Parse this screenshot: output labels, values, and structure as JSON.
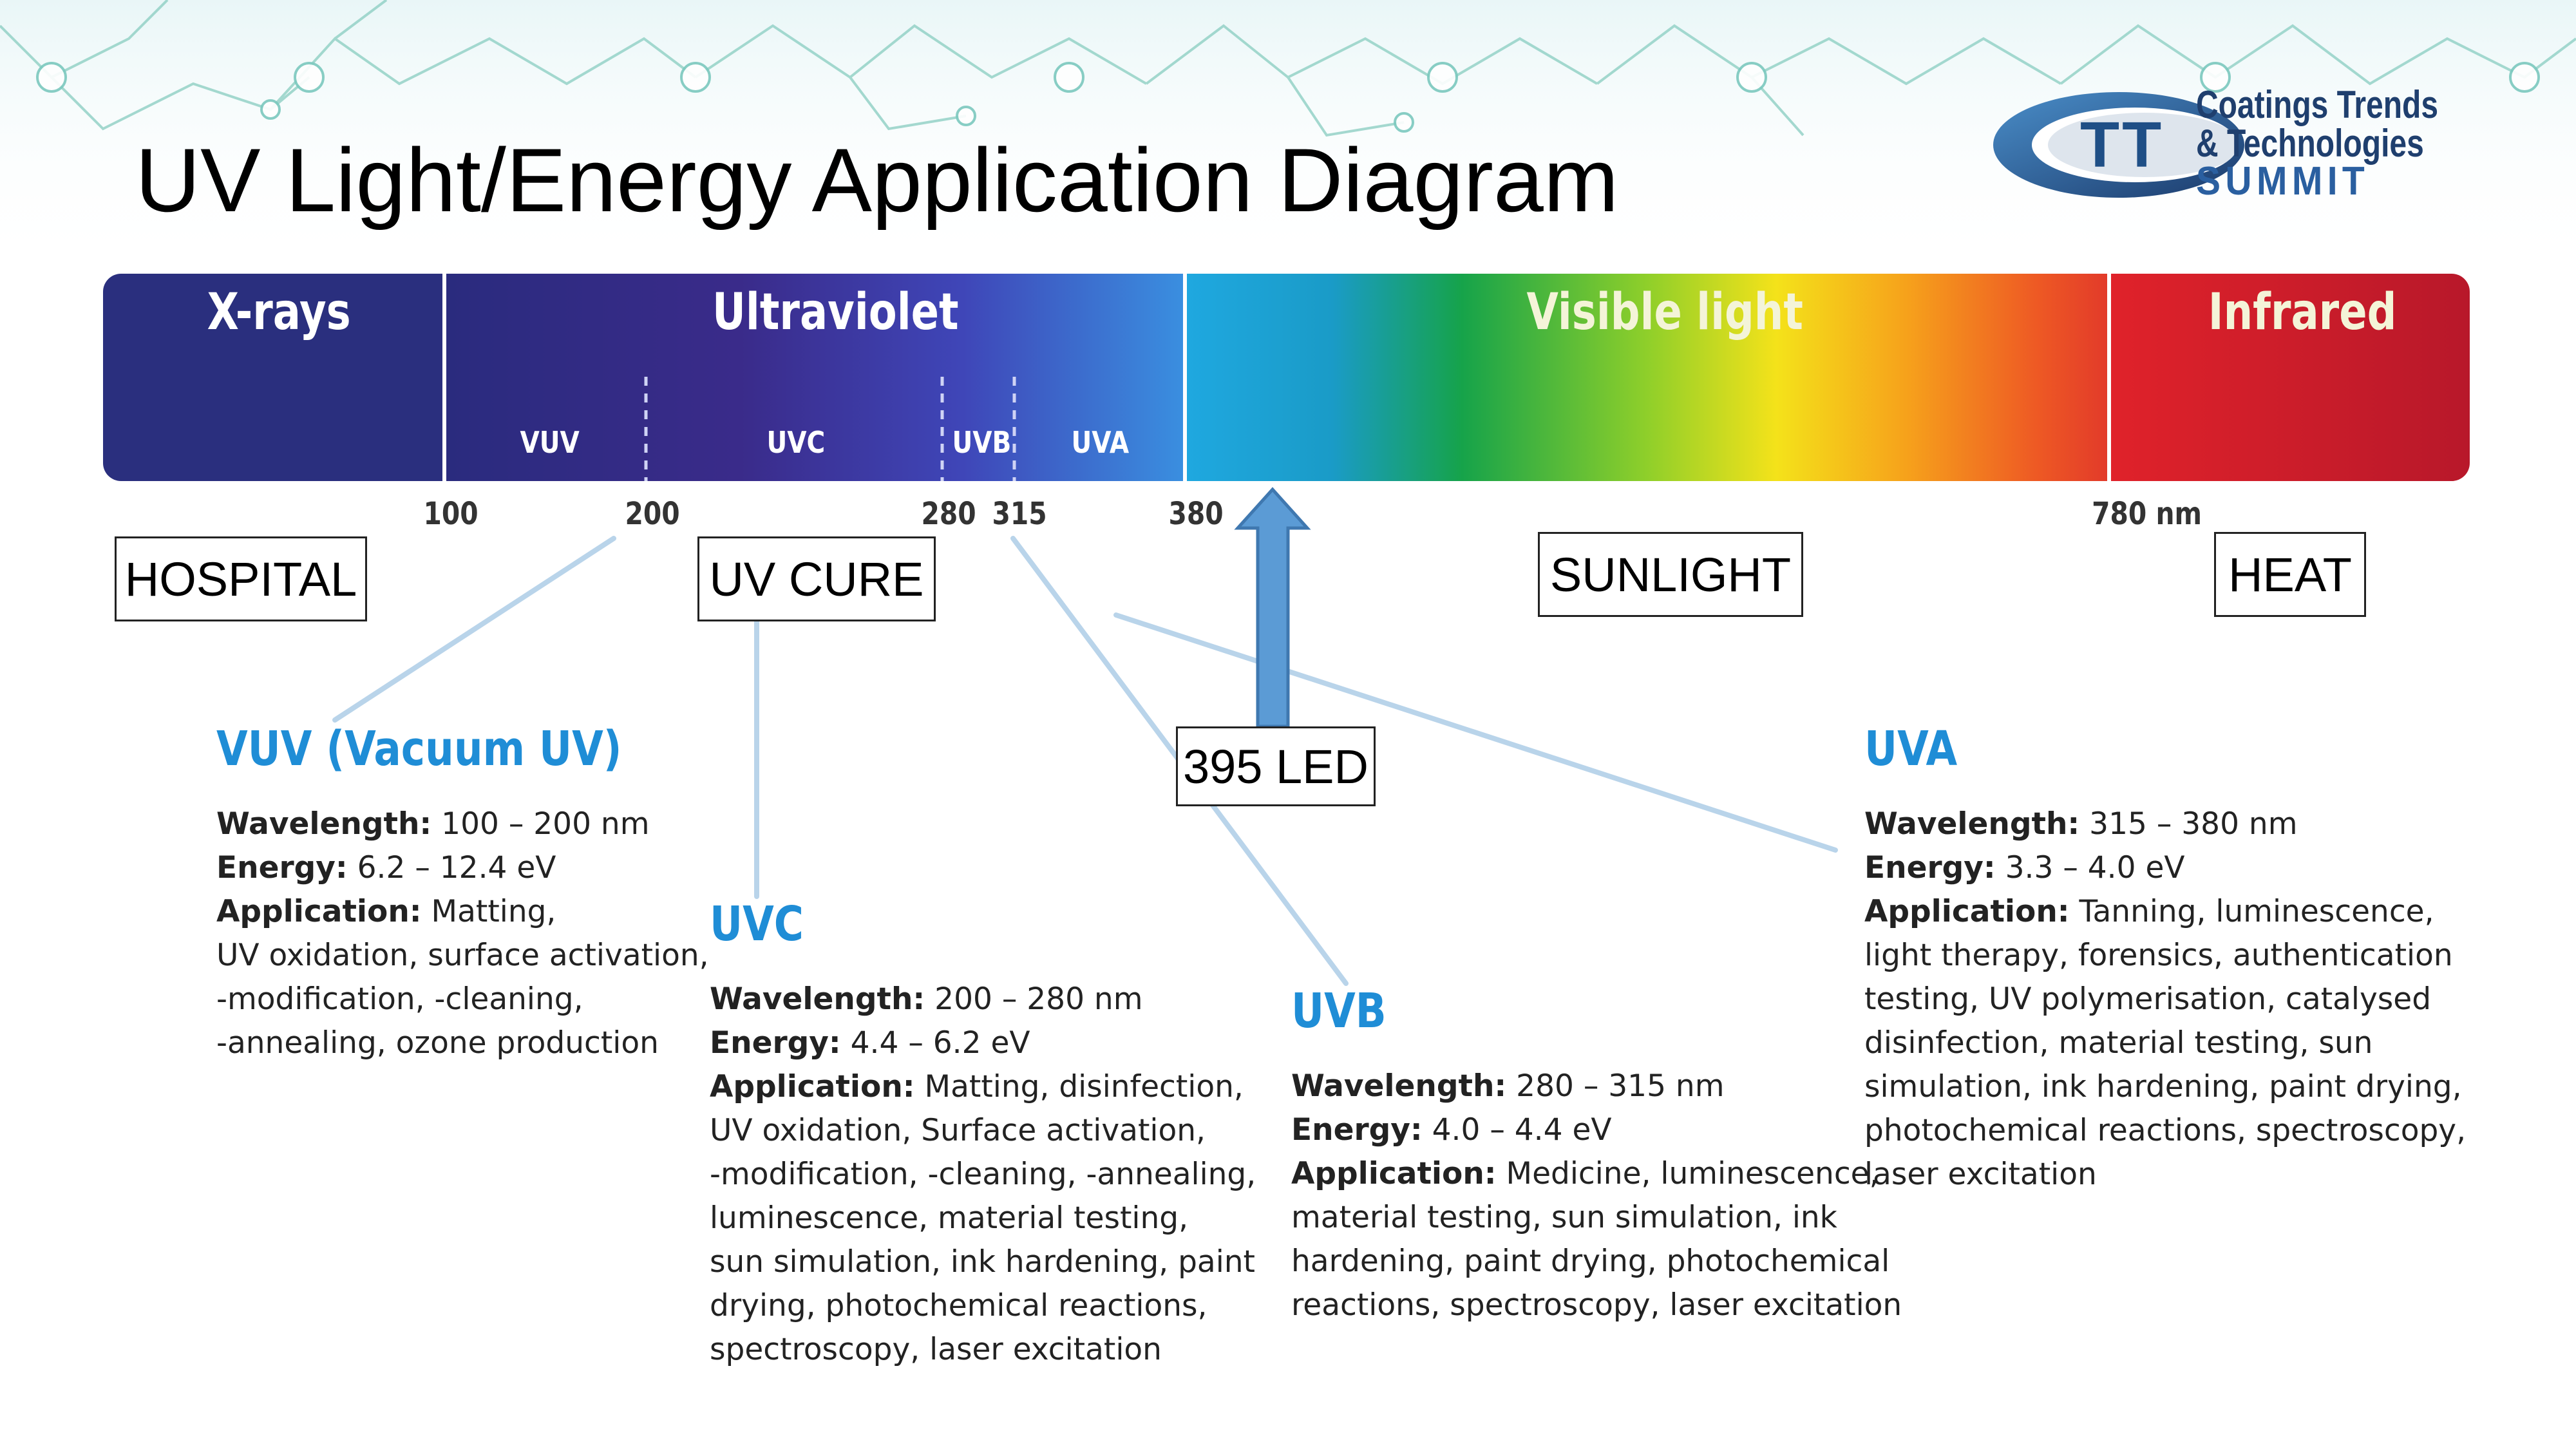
{
  "title": "UV Light/Energy Application Diagram",
  "logo": {
    "line1": "Coatings Trends",
    "line2": "& Technologies",
    "line3": "SUMMIT",
    "monogram": "TT"
  },
  "spectrum": {
    "bands": [
      "X-rays",
      "Ultraviolet",
      "Visible light",
      "Infrared"
    ],
    "sub_bands": [
      "VUV",
      "UVC",
      "UVB",
      "UVA"
    ],
    "ticks": [
      "100",
      "200",
      "280",
      "315",
      "380",
      "780 nm"
    ]
  },
  "tags": {
    "hospital": "HOSPITAL",
    "uv_cure": "UV CURE",
    "sunlight": "SUNLIGHT",
    "heat": "HEAT",
    "led": "395 LED"
  },
  "cards": {
    "vuv": {
      "title": "VUV (Vacuum UV)",
      "wavelength_label": "Wavelength:",
      "wavelength": "100 – 200 nm",
      "energy_label": "Energy:",
      "energy": "6.2 – 12.4 eV",
      "application_label": "Application:",
      "application": [
        "Matting,",
        "UV oxidation, surface activation,",
        "-modification, -cleaning,",
        "-annealing, ozone production"
      ]
    },
    "uvc": {
      "title": "UVC",
      "wavelength_label": "Wavelength:",
      "wavelength": "200 – 280 nm",
      "energy_label": "Energy:",
      "energy": "4.4 – 6.2 eV",
      "application_label": "Application:",
      "application": [
        "Matting, disinfection,",
        "UV oxidation, Surface activation,",
        "-modification, -cleaning, -annealing,",
        "luminescence, material testing,",
        "sun simulation, ink hardening, paint",
        "drying, photochemical reactions,",
        "spectroscopy, laser excitation"
      ]
    },
    "uvb": {
      "title": "UVB",
      "wavelength_label": "Wavelength:",
      "wavelength": "280 – 315 nm",
      "energy_label": "Energy:",
      "energy": "4.0 – 4.4 eV",
      "application_label": "Application:",
      "application": [
        "Medicine, luminescence,",
        "material testing, sun simulation, ink",
        "hardening, paint drying, photochemical",
        "reactions, spectroscopy, laser excitation"
      ]
    },
    "uva": {
      "title": "UVA",
      "wavelength_label": "Wavelength:",
      "wavelength": "315 – 380 nm",
      "energy_label": "Energy:",
      "energy": "3.3 – 4.0 eV",
      "application_label": "Application:",
      "application": [
        "Tanning, luminescence,",
        "light therapy, forensics, authentication",
        "testing, UV polymerisation, catalysed",
        "disinfection, material testing, sun",
        "simulation, ink hardening, paint drying,",
        "photochemical reactions, spectroscopy,",
        "laser excitation"
      ]
    }
  }
}
